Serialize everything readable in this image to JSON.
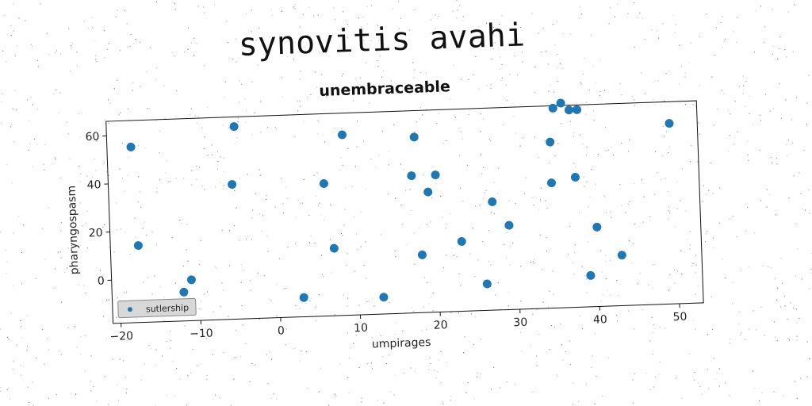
{
  "suptitle": "synovitis avahi",
  "chart_data": {
    "type": "scatter",
    "title": "unembraceable",
    "xlabel": "umpirages",
    "ylabel": "pharyngospasm",
    "xlim": [
      -21,
      53
    ],
    "ylim": [
      -18,
      66
    ],
    "xticks": [
      -20,
      -10,
      0,
      10,
      20,
      30,
      40,
      50
    ],
    "yticks": [
      0,
      20,
      40,
      60
    ],
    "grid": false,
    "legend_position": "lower-left",
    "color": "#1f77b4",
    "series": [
      {
        "name": "sutlership",
        "points": [
          [
            -18,
            55
          ],
          [
            -17.5,
            14
          ],
          [
            -12,
            -6
          ],
          [
            -11,
            -1
          ],
          [
            -5.5,
            38
          ],
          [
            -5,
            62
          ],
          [
            3,
            -10
          ],
          [
            6,
            37
          ],
          [
            7,
            10
          ],
          [
            8.5,
            57
          ],
          [
            13,
            -11
          ],
          [
            17,
            39
          ],
          [
            17.5,
            55
          ],
          [
            18,
            6
          ],
          [
            19,
            32
          ],
          [
            20,
            39
          ],
          [
            23,
            11
          ],
          [
            26,
            -7
          ],
          [
            27,
            27
          ],
          [
            29,
            17
          ],
          [
            34.5,
            51
          ],
          [
            34.5,
            34
          ],
          [
            35,
            65
          ],
          [
            36,
            67
          ],
          [
            37,
            64
          ],
          [
            37.5,
            36
          ],
          [
            38,
            64
          ],
          [
            39,
            -5
          ],
          [
            40,
            15
          ],
          [
            43,
            3
          ],
          [
            49.5,
            57
          ]
        ]
      }
    ]
  }
}
